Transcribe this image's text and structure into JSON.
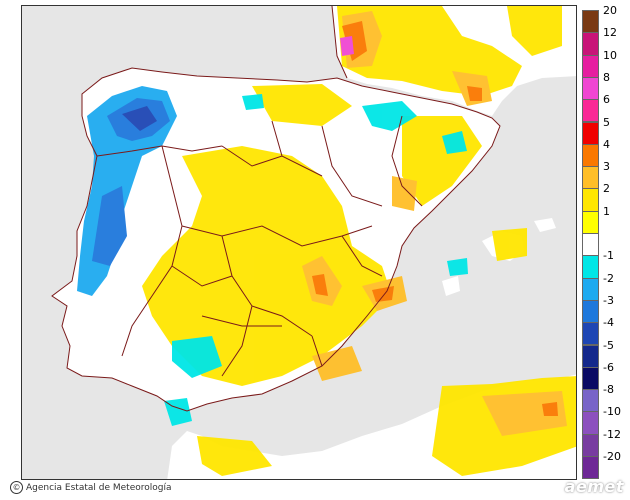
{
  "map": {
    "credit_text": "Agencia Estatal de Meteorología",
    "credit_icon": "copyright-icon",
    "logo_text": "aemet",
    "colors": {
      "sea": "#e6e6e6",
      "land": "#ffffff",
      "border": "#7a1a1a"
    }
  },
  "legend": {
    "entries": [
      {
        "label": "20",
        "color": "#7a3a14"
      },
      {
        "label": "12",
        "color": "#c81478"
      },
      {
        "label": "10",
        "color": "#e61ea0"
      },
      {
        "label": "8",
        "color": "#f046d2"
      },
      {
        "label": "6",
        "color": "#fa2896"
      },
      {
        "label": "5",
        "color": "#f00000"
      },
      {
        "label": "4",
        "color": "#fa7800"
      },
      {
        "label": "3",
        "color": "#ffbe28"
      },
      {
        "label": "2",
        "color": "#ffe600"
      },
      {
        "label": "1",
        "color": "#ffff00"
      },
      {
        "label": "",
        "color": "#ffffff"
      },
      {
        "label": "-1",
        "color": "#00e6e6"
      },
      {
        "label": "-2",
        "color": "#1eaaf0"
      },
      {
        "label": "-3",
        "color": "#1e78dc"
      },
      {
        "label": "-4",
        "color": "#1e46b4"
      },
      {
        "label": "-5",
        "color": "#14288c"
      },
      {
        "label": "-6",
        "color": "#0a0a64"
      },
      {
        "label": "-8",
        "color": "#7864c8"
      },
      {
        "label": "-10",
        "color": "#8c50be"
      },
      {
        "label": "-12",
        "color": "#783ca0"
      },
      {
        "label": "-20",
        "color": "#6e2896"
      }
    ]
  }
}
